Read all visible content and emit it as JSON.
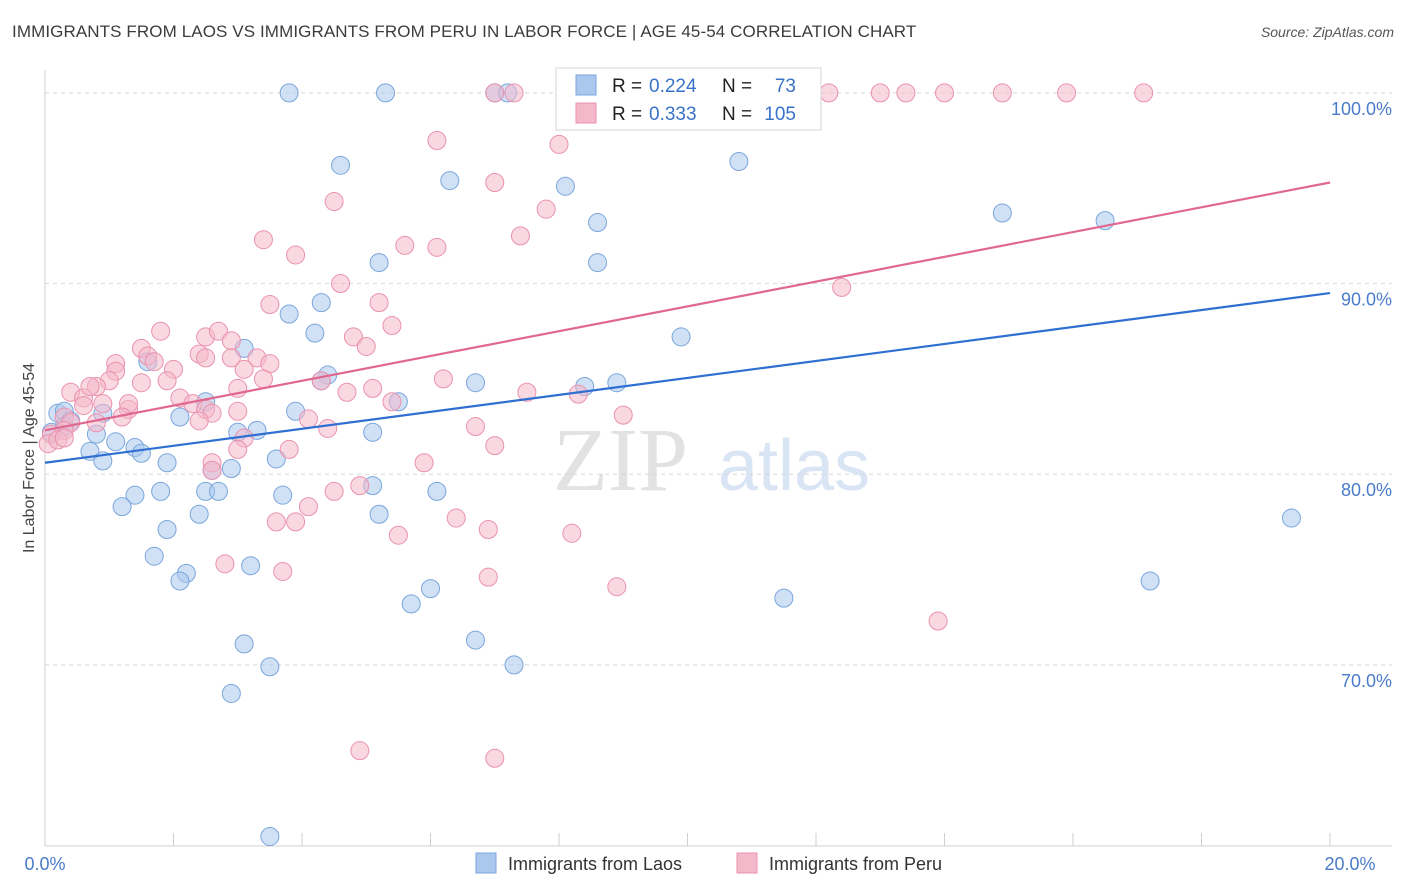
{
  "header": {
    "title": "IMMIGRANTS FROM LAOS VS IMMIGRANTS FROM PERU IN LABOR FORCE | AGE 45-54 CORRELATION CHART",
    "source": "Source: ZipAtlas.com"
  },
  "watermark": {
    "zip": "ZIP",
    "atlas": "atlas"
  },
  "colors": {
    "laos_fill": "#aac8ee",
    "laos_stroke": "#7aa6dc",
    "laos_line": "#2f6fd1",
    "peru_fill": "#f4b8cb",
    "peru_stroke": "#ea92ae",
    "peru_line": "#e06890",
    "axis_label": "#4a7cc9",
    "grid": "#d8d8d8"
  },
  "chart_data": {
    "type": "scatter",
    "title": "IMMIGRANTS FROM LAOS VS IMMIGRANTS FROM PERU IN LABOR FORCE | AGE 45-54 CORRELATION CHART",
    "xlabel": "",
    "ylabel": "In Labor Force | Age 45-54",
    "xlim": [
      0,
      20
    ],
    "ylim": [
      60.5,
      101.2
    ],
    "x_tick_labels": [
      "0.0%",
      "20.0%"
    ],
    "y_ticks": [
      {
        "value": 100,
        "label": "100.0%"
      },
      {
        "value": 90,
        "label": "90.0%"
      },
      {
        "value": 80,
        "label": "80.0%"
      },
      {
        "value": 70,
        "label": "70.0%"
      }
    ],
    "legend_box": {
      "laos": {
        "r_label": "R =",
        "r_value": "0.224",
        "n_label": "N =",
        "n_value": "73"
      },
      "peru": {
        "r_label": "R =",
        "r_value": "0.333",
        "n_label": "N =",
        "n_value": "105"
      }
    },
    "series": [
      {
        "name": "Immigrants from Laos",
        "color": "#aac8ee",
        "trend": {
          "x": [
            0,
            20
          ],
          "y": [
            80.6,
            89.5
          ]
        },
        "points": [
          [
            3.8,
            100
          ],
          [
            5.3,
            100
          ],
          [
            7.0,
            100
          ],
          [
            7.2,
            100
          ],
          [
            4.6,
            96.2
          ],
          [
            6.3,
            95.4
          ],
          [
            8.1,
            95.1
          ],
          [
            10.8,
            96.4
          ],
          [
            14.9,
            93.7
          ],
          [
            16.5,
            93.3
          ],
          [
            8.6,
            93.2
          ],
          [
            5.2,
            91.1
          ],
          [
            8.6,
            91.1
          ],
          [
            3.8,
            88.4
          ],
          [
            4.3,
            89.0
          ],
          [
            4.2,
            87.4
          ],
          [
            9.9,
            87.2
          ],
          [
            3.1,
            86.6
          ],
          [
            1.6,
            85.9
          ],
          [
            4.4,
            85.2
          ],
          [
            6.7,
            84.8
          ],
          [
            8.4,
            84.6
          ],
          [
            8.9,
            84.8
          ],
          [
            2.5,
            83.8
          ],
          [
            5.5,
            83.8
          ],
          [
            3.9,
            83.3
          ],
          [
            0.2,
            83.2
          ],
          [
            0.3,
            83.3
          ],
          [
            0.4,
            82.8
          ],
          [
            0.9,
            83.2
          ],
          [
            2.1,
            83.0
          ],
          [
            0.3,
            82.5
          ],
          [
            0.1,
            82.2
          ],
          [
            0.8,
            82.1
          ],
          [
            1.1,
            81.7
          ],
          [
            3.3,
            82.3
          ],
          [
            5.1,
            82.2
          ],
          [
            0.7,
            81.2
          ],
          [
            1.4,
            81.4
          ],
          [
            1.5,
            81.1
          ],
          [
            0.9,
            80.7
          ],
          [
            1.9,
            80.6
          ],
          [
            3.6,
            80.8
          ],
          [
            2.6,
            80.2
          ],
          [
            2.9,
            80.3
          ],
          [
            5.1,
            79.4
          ],
          [
            6.1,
            79.1
          ],
          [
            1.4,
            78.9
          ],
          [
            1.8,
            79.1
          ],
          [
            2.5,
            79.1
          ],
          [
            2.7,
            79.1
          ],
          [
            3.7,
            78.9
          ],
          [
            1.2,
            78.3
          ],
          [
            2.4,
            77.9
          ],
          [
            5.2,
            77.9
          ],
          [
            19.4,
            77.7
          ],
          [
            1.9,
            77.1
          ],
          [
            1.7,
            75.7
          ],
          [
            3.2,
            75.2
          ],
          [
            2.2,
            74.8
          ],
          [
            2.1,
            74.4
          ],
          [
            17.2,
            74.4
          ],
          [
            6.0,
            74.0
          ],
          [
            11.5,
            73.5
          ],
          [
            5.7,
            73.2
          ],
          [
            6.7,
            71.3
          ],
          [
            3.1,
            71.1
          ],
          [
            3.5,
            69.9
          ],
          [
            7.3,
            70.0
          ],
          [
            2.9,
            68.5
          ],
          [
            3.5,
            61.0
          ],
          [
            4.3,
            84.9
          ],
          [
            3.0,
            82.2
          ]
        ]
      },
      {
        "name": "Immigrants from Peru",
        "color": "#f4b8cb",
        "trend": {
          "x": [
            0,
            20
          ],
          "y": [
            82.3,
            95.3
          ]
        },
        "points": [
          [
            7.0,
            100
          ],
          [
            7.3,
            100
          ],
          [
            9.6,
            100
          ],
          [
            12.2,
            100
          ],
          [
            13.0,
            100
          ],
          [
            13.4,
            100
          ],
          [
            14.0,
            100
          ],
          [
            14.9,
            100
          ],
          [
            15.9,
            100
          ],
          [
            17.1,
            100
          ],
          [
            6.1,
            97.5
          ],
          [
            8.0,
            97.3
          ],
          [
            7.0,
            95.3
          ],
          [
            4.5,
            94.3
          ],
          [
            7.8,
            93.9
          ],
          [
            7.4,
            92.5
          ],
          [
            3.4,
            92.3
          ],
          [
            5.6,
            92.0
          ],
          [
            6.1,
            91.9
          ],
          [
            3.9,
            91.5
          ],
          [
            4.6,
            90.0
          ],
          [
            12.4,
            89.8
          ],
          [
            5.2,
            89.0
          ],
          [
            3.5,
            88.9
          ],
          [
            5.4,
            87.8
          ],
          [
            1.8,
            87.5
          ],
          [
            2.5,
            87.2
          ],
          [
            2.7,
            87.5
          ],
          [
            2.9,
            87.0
          ],
          [
            4.8,
            87.2
          ],
          [
            5.0,
            86.7
          ],
          [
            1.5,
            86.6
          ],
          [
            1.6,
            86.2
          ],
          [
            2.4,
            86.3
          ],
          [
            2.5,
            86.1
          ],
          [
            2.9,
            86.1
          ],
          [
            3.3,
            86.1
          ],
          [
            3.5,
            85.8
          ],
          [
            1.1,
            85.8
          ],
          [
            1.7,
            85.9
          ],
          [
            1.1,
            85.4
          ],
          [
            2.0,
            85.5
          ],
          [
            3.1,
            85.5
          ],
          [
            1.0,
            84.9
          ],
          [
            1.5,
            84.8
          ],
          [
            1.9,
            84.9
          ],
          [
            4.3,
            84.9
          ],
          [
            3.0,
            84.5
          ],
          [
            3.4,
            85.0
          ],
          [
            6.2,
            85.0
          ],
          [
            0.8,
            84.6
          ],
          [
            0.4,
            84.3
          ],
          [
            0.6,
            84.0
          ],
          [
            0.7,
            84.6
          ],
          [
            2.1,
            84.0
          ],
          [
            2.3,
            83.7
          ],
          [
            4.7,
            84.3
          ],
          [
            5.1,
            84.5
          ],
          [
            7.5,
            84.3
          ],
          [
            8.3,
            84.2
          ],
          [
            5.4,
            83.8
          ],
          [
            0.6,
            83.6
          ],
          [
            0.9,
            83.7
          ],
          [
            1.3,
            83.4
          ],
          [
            1.3,
            83.7
          ],
          [
            2.5,
            83.4
          ],
          [
            3.0,
            83.3
          ],
          [
            2.6,
            83.2
          ],
          [
            2.4,
            82.8
          ],
          [
            0.3,
            83.0
          ],
          [
            0.4,
            82.7
          ],
          [
            1.2,
            83.0
          ],
          [
            0.8,
            82.7
          ],
          [
            9.0,
            83.1
          ],
          [
            4.1,
            82.9
          ],
          [
            4.4,
            82.4
          ],
          [
            0.3,
            82.3
          ],
          [
            0.1,
            82.1
          ],
          [
            0.05,
            81.6
          ],
          [
            0.2,
            81.8
          ],
          [
            0.3,
            81.9
          ],
          [
            3.1,
            81.9
          ],
          [
            3.0,
            81.3
          ],
          [
            3.8,
            81.3
          ],
          [
            7.0,
            81.5
          ],
          [
            2.6,
            80.6
          ],
          [
            2.6,
            80.2
          ],
          [
            5.9,
            80.6
          ],
          [
            4.5,
            79.1
          ],
          [
            4.9,
            79.4
          ],
          [
            4.1,
            78.3
          ],
          [
            6.4,
            77.7
          ],
          [
            3.6,
            77.5
          ],
          [
            3.9,
            77.5
          ],
          [
            6.9,
            77.1
          ],
          [
            5.5,
            76.8
          ],
          [
            8.2,
            76.9
          ],
          [
            2.8,
            75.3
          ],
          [
            3.7,
            74.9
          ],
          [
            6.9,
            74.6
          ],
          [
            8.9,
            74.1
          ],
          [
            13.9,
            72.3
          ],
          [
            4.9,
            65.5
          ],
          [
            7.0,
            65.1
          ],
          [
            6.7,
            82.5
          ]
        ]
      }
    ]
  },
  "legend": {
    "laos_label": "Immigrants from Laos",
    "peru_label": "Immigrants from Peru"
  }
}
